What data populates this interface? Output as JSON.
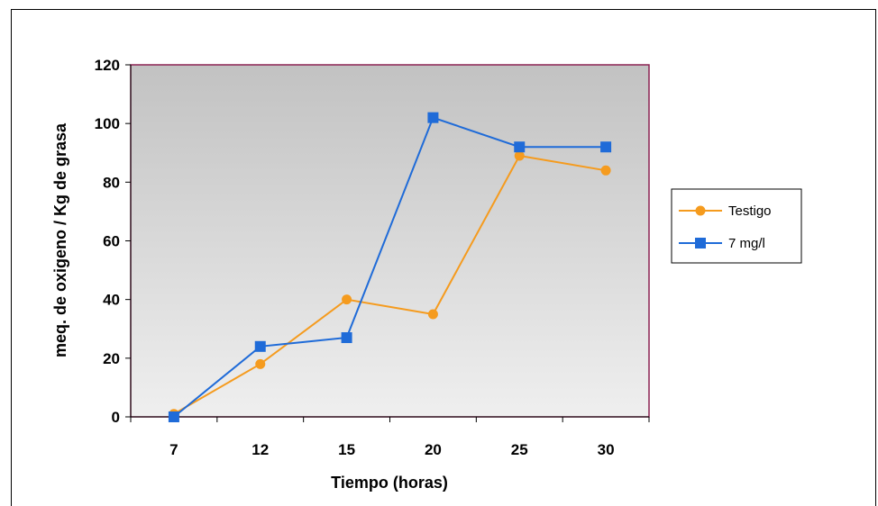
{
  "chart_data": {
    "type": "line",
    "title": "",
    "xlabel": "Tiempo (horas)",
    "ylabel": "meq. de oxigeno / Kg de grasa",
    "categories": [
      "7",
      "12",
      "15",
      "20",
      "25",
      "30"
    ],
    "ylim": [
      0,
      120
    ],
    "yticks": [
      "0",
      "20",
      "40",
      "60",
      "80",
      "100",
      "120"
    ],
    "grid": false,
    "legend_position": "right",
    "series": [
      {
        "name": "Testigo",
        "values": [
          1,
          18,
          40,
          35,
          89,
          84
        ],
        "color": "#F59B1E",
        "marker": "circle"
      },
      {
        "name": "7 mg/l",
        "values": [
          0,
          24,
          27,
          102,
          92,
          92
        ],
        "color": "#1F6BD8",
        "marker": "square"
      }
    ],
    "plot_background": [
      "#C2C2C2",
      "#EFEFEF"
    ],
    "plot_border_color": "#8B2252"
  }
}
